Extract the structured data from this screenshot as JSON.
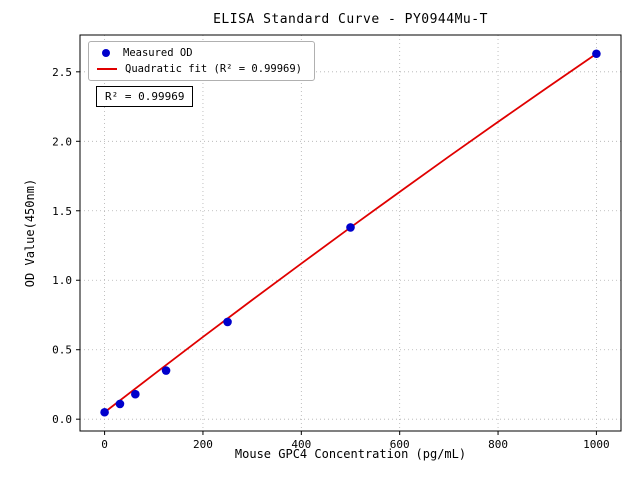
{
  "chart_data": {
    "type": "scatter",
    "title": "ELISA Standard Curve - PY0944Mu-T",
    "xlabel": "Mouse GPC4 Concentration (pg/mL)",
    "ylabel": "OD Value(450nm)",
    "xlim": [
      -50,
      1050
    ],
    "ylim": [
      -0.085,
      2.765
    ],
    "xticks": [
      0,
      200,
      400,
      600,
      800,
      1000
    ],
    "xtick_labels": [
      "0",
      "200",
      "400",
      "600",
      "800",
      "1000"
    ],
    "yticks": [
      0.0,
      0.5,
      1.0,
      1.5,
      2.0,
      2.5
    ],
    "ytick_labels": [
      "0.0",
      "0.5",
      "1.0",
      "1.5",
      "2.0",
      "2.5"
    ],
    "grid": true,
    "grid_style": "dotted",
    "grid_color": "#b0b0b0",
    "legend_position": "upper left",
    "annotation": "R² = 0.99969",
    "series": [
      {
        "name": "Measured OD",
        "type": "scatter",
        "color": "#0000cc",
        "x": [
          0,
          31.25,
          62.5,
          125,
          250,
          500,
          1000
        ],
        "y": [
          0.05,
          0.11,
          0.18,
          0.35,
          0.7,
          1.38,
          2.63
        ]
      },
      {
        "name": "Quadratic fit (R² = 0.99969)",
        "type": "line",
        "color": "#e00000",
        "x": [
          0,
          100,
          200,
          300,
          400,
          500,
          600,
          700,
          800,
          900,
          1000
        ],
        "y": [
          0.05,
          0.322,
          0.592,
          0.858,
          1.12,
          1.38,
          1.636,
          1.89,
          2.14,
          2.386,
          2.63
        ]
      }
    ]
  }
}
